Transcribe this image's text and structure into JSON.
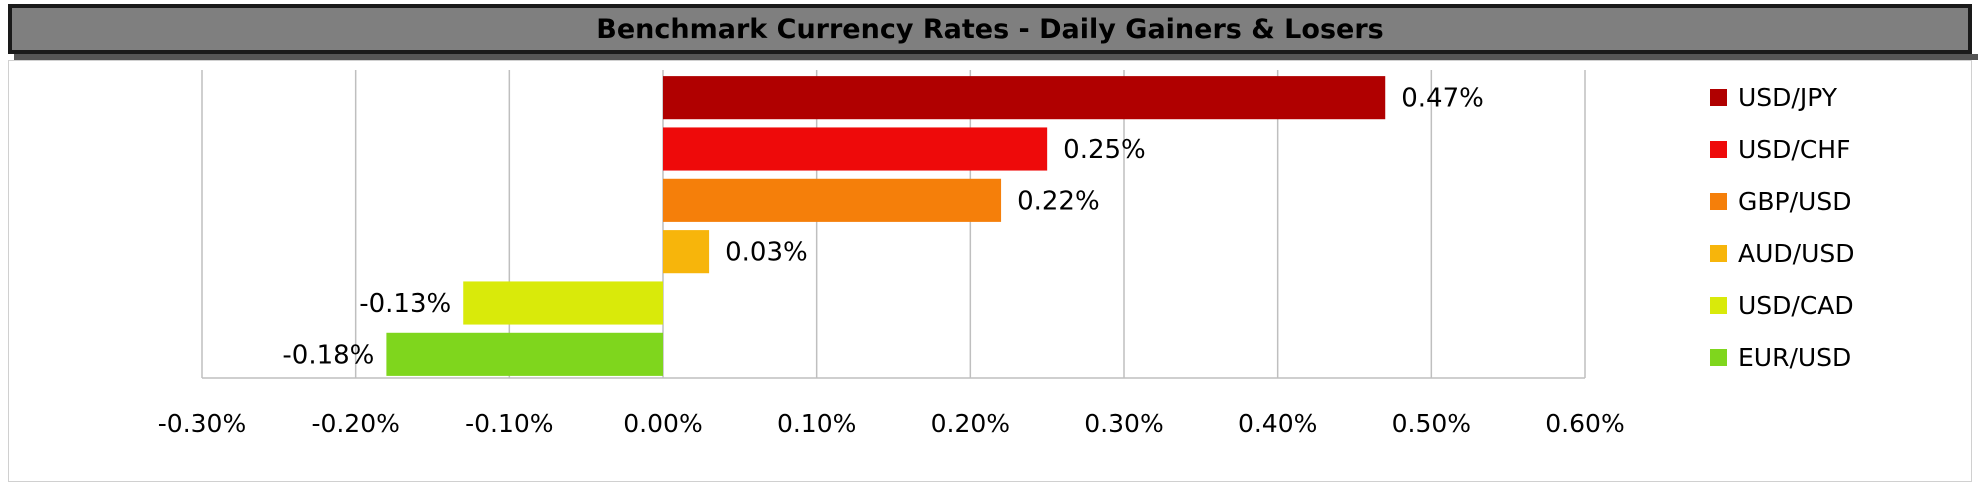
{
  "chart_data": {
    "type": "bar",
    "orientation": "horizontal",
    "title": "Benchmark Currency Rates - Daily Gainers & Losers",
    "categories": [
      "USD/JPY",
      "USD/CHF",
      "GBP/USD",
      "AUD/USD",
      "USD/CAD",
      "EUR/USD"
    ],
    "values": [
      0.47,
      0.25,
      0.22,
      0.03,
      -0.13,
      -0.18
    ],
    "data_labels": [
      "0.47%",
      "0.25%",
      "0.22%",
      "0.03%",
      "-0.13%",
      "-0.18%"
    ],
    "colors": [
      "#b00000",
      "#ee0a0a",
      "#f57f0a",
      "#f7b50b",
      "#d9ea0a",
      "#7fd61d"
    ],
    "xlim": [
      -0.3,
      0.6
    ],
    "xticks": [
      -0.3,
      -0.2,
      -0.1,
      0.0,
      0.1,
      0.2,
      0.3,
      0.4,
      0.5,
      0.6
    ],
    "xtick_labels": [
      "-0.30%",
      "-0.20%",
      "-0.10%",
      "0.00%",
      "0.10%",
      "0.20%",
      "0.30%",
      "0.40%",
      "0.50%",
      "0.60%"
    ],
    "xlabel": "",
    "ylabel": "",
    "grid": "vertical",
    "legend": "right",
    "legend_entries": [
      "USD/JPY",
      "USD/CHF",
      "GBP/USD",
      "AUD/USD",
      "USD/CAD",
      "EUR/USD"
    ]
  }
}
